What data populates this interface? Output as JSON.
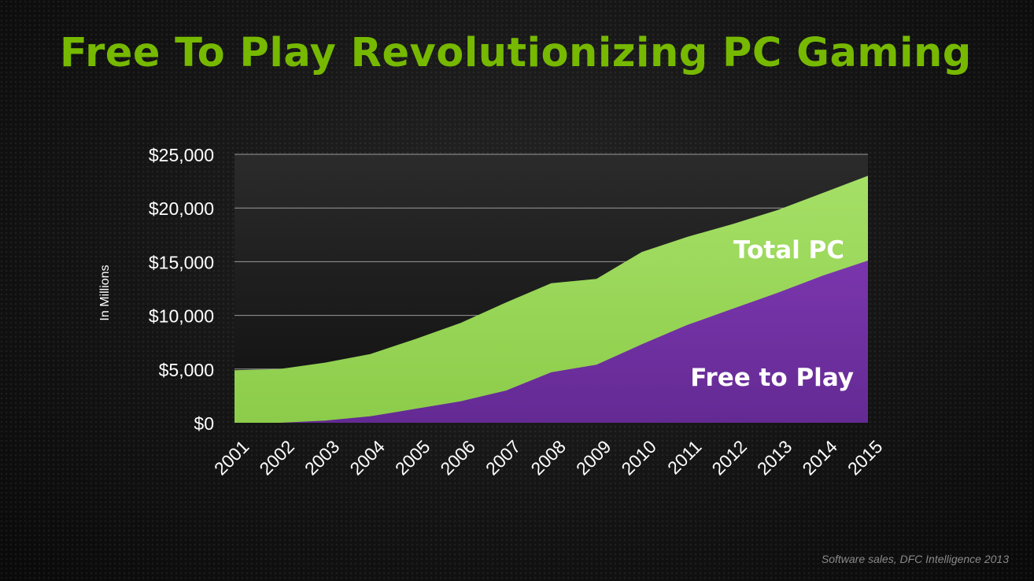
{
  "slide": {
    "title": "Free To Play Revolutionizing PC Gaming",
    "source": "Software sales, DFC Intelligence 2013"
  },
  "colors": {
    "title": "#76b900",
    "total_pc": "#9ada58",
    "free_to_play": "#7030a0",
    "plot_background": "#1a1a1a",
    "grid": "#9a9a9a"
  },
  "chart_data": {
    "type": "area",
    "x": [
      "2001",
      "2002",
      "2003",
      "2004",
      "2005",
      "2006",
      "2007",
      "2008",
      "2009",
      "2010",
      "2011",
      "2012",
      "2013",
      "2014",
      "2015"
    ],
    "series": [
      {
        "name": "Total PC",
        "values": [
          4900,
          5000,
          5600,
          6400,
          7800,
          9300,
          11200,
          13000,
          13400,
          15900,
          17300,
          18500,
          19800,
          21400,
          23000
        ]
      },
      {
        "name": "Free to Play",
        "values": [
          0,
          0,
          200,
          600,
          1300,
          2000,
          3000,
          4700,
          5400,
          7300,
          9100,
          10600,
          12100,
          13700,
          15100
        ]
      }
    ],
    "ylabel": "In Millions",
    "yticks": [
      "$0",
      "$5,000",
      "$10,000",
      "$15,000",
      "$20,000",
      "$25,000"
    ],
    "ylim": [
      0,
      25000
    ],
    "grid": true,
    "legend": "inline labels inside areas"
  }
}
